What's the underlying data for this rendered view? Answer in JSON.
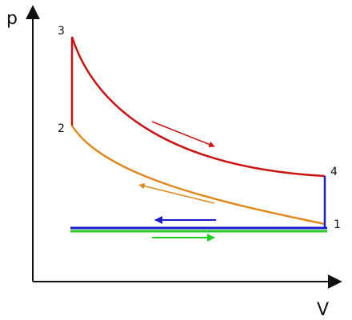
{
  "axes": {
    "y_label": "p",
    "x_label": "V"
  },
  "points": {
    "p1": "1",
    "p2": "2",
    "p3": "3",
    "p4": "4"
  },
  "colors": {
    "axis": "#111111",
    "expansion_and_isochores": "#cc1111",
    "compression": "#e08a1e",
    "exhaust": "#1a1acc",
    "intake": "#22cc22"
  }
}
